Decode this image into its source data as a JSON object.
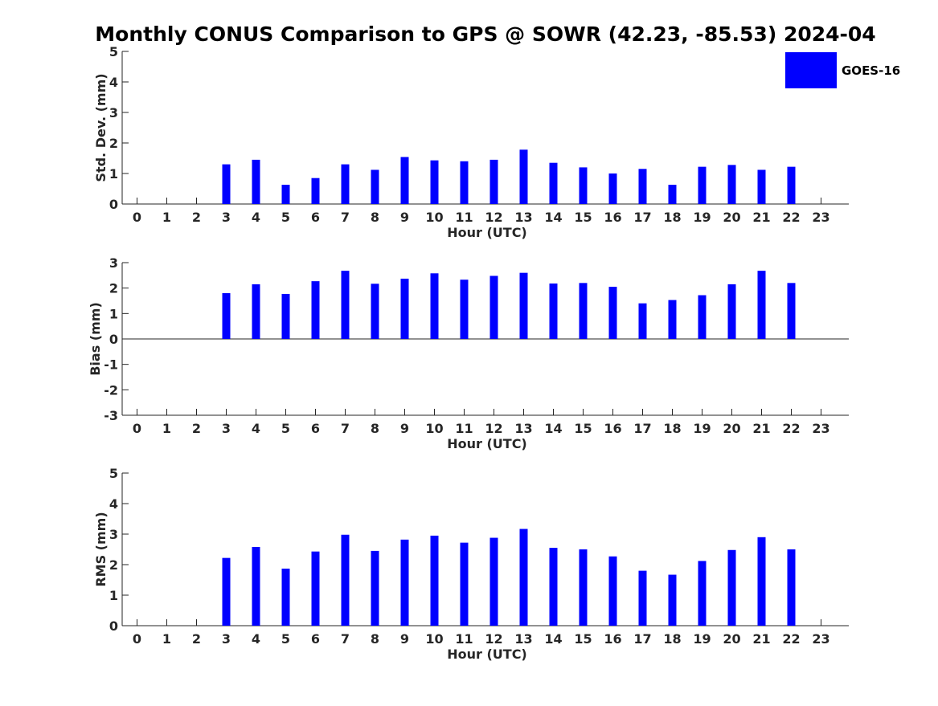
{
  "title": "Monthly CONUS Comparison to GPS @ SOWR (42.23, -85.53) 2024-04",
  "legend": {
    "label": "GOES-16",
    "color": "#0000ff",
    "placement": "top-right"
  },
  "chart_data": [
    {
      "type": "bar",
      "ylabel": "Std. Dev. (mm)",
      "xlabel": "Hour (UTC)",
      "ylim": [
        0,
        5
      ],
      "yticks": [
        "0",
        "1",
        "2",
        "3",
        "4",
        "5"
      ],
      "categories": [
        "0",
        "1",
        "2",
        "3",
        "4",
        "5",
        "6",
        "7",
        "8",
        "9",
        "10",
        "11",
        "12",
        "13",
        "14",
        "15",
        "16",
        "17",
        "18",
        "19",
        "20",
        "21",
        "22",
        "23"
      ],
      "series": [
        {
          "name": "GOES-16",
          "color": "#0000ff",
          "values": [
            null,
            null,
            null,
            1.3,
            1.45,
            0.63,
            0.85,
            1.3,
            1.12,
            1.54,
            1.43,
            1.4,
            1.45,
            1.78,
            1.35,
            1.2,
            1.0,
            1.15,
            0.63,
            1.22,
            1.28,
            1.12,
            1.22,
            null
          ]
        }
      ]
    },
    {
      "type": "bar",
      "ylabel": "Bias (mm)",
      "xlabel": "Hour (UTC)",
      "ylim": [
        -3,
        3
      ],
      "yticks": [
        "-3",
        "-2",
        "-1",
        "0",
        "1",
        "2",
        "3"
      ],
      "zero_line": true,
      "categories": [
        "0",
        "1",
        "2",
        "3",
        "4",
        "5",
        "6",
        "7",
        "8",
        "9",
        "10",
        "11",
        "12",
        "13",
        "14",
        "15",
        "16",
        "17",
        "18",
        "19",
        "20",
        "21",
        "22",
        "23"
      ],
      "series": [
        {
          "name": "GOES-16",
          "color": "#0000ff",
          "values": [
            null,
            null,
            null,
            1.8,
            2.15,
            1.77,
            2.27,
            2.68,
            2.17,
            2.37,
            2.58,
            2.33,
            2.48,
            2.6,
            2.18,
            2.2,
            2.05,
            1.4,
            1.53,
            1.72,
            2.15,
            2.68,
            2.2,
            null
          ]
        }
      ]
    },
    {
      "type": "bar",
      "ylabel": "RMS (mm)",
      "xlabel": "Hour (UTC)",
      "ylim": [
        0,
        5
      ],
      "yticks": [
        "0",
        "1",
        "2",
        "3",
        "4",
        "5"
      ],
      "categories": [
        "0",
        "1",
        "2",
        "3",
        "4",
        "5",
        "6",
        "7",
        "8",
        "9",
        "10",
        "11",
        "12",
        "13",
        "14",
        "15",
        "16",
        "17",
        "18",
        "19",
        "20",
        "21",
        "22",
        "23"
      ],
      "series": [
        {
          "name": "GOES-16",
          "color": "#0000ff",
          "values": [
            null,
            null,
            null,
            2.22,
            2.58,
            1.87,
            2.43,
            2.98,
            2.45,
            2.82,
            2.95,
            2.72,
            2.88,
            3.17,
            2.55,
            2.5,
            2.27,
            1.8,
            1.67,
            2.12,
            2.48,
            2.9,
            2.5,
            null
          ]
        }
      ]
    }
  ]
}
